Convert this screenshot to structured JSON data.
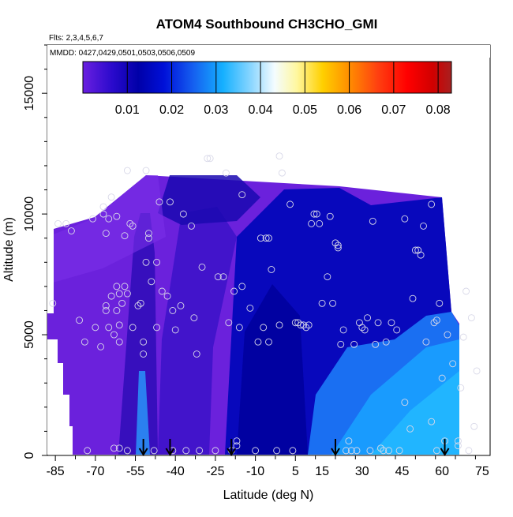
{
  "chart_data": {
    "type": "heatmap",
    "title": "ATOM4 Southbound CH3CHO_GMI",
    "subtitle_flights": "Flts: 2,3,4,5,6,7",
    "subtitle_dates": "MMDD: 0427,0429,0501,0503,0506,0509",
    "xlabel": "Latitude (deg N)",
    "ylabel": "Altitude (m)",
    "xlim": [
      -88,
      78
    ],
    "ylim": [
      0,
      17000
    ],
    "x_ticks": [
      -85,
      -70,
      -55,
      -40,
      -25,
      -10,
      5,
      15,
      30,
      45,
      60,
      75
    ],
    "x_tick_labels": [
      "-85",
      "-70",
      "-55",
      "-40",
      "-25",
      "-10",
      "5",
      "15",
      "30",
      "45",
      "60",
      "75"
    ],
    "y_ticks": [
      0,
      5000,
      10000,
      15000
    ],
    "y_tick_labels": [
      "0",
      "5000",
      "10000",
      "15000"
    ],
    "colorbar": {
      "range": [
        0,
        0.083
      ],
      "ticks": [
        0.01,
        0.02,
        0.03,
        0.04,
        0.05,
        0.06,
        0.07,
        0.08
      ],
      "tick_labels": [
        "0.01",
        "0.02",
        "0.03",
        "0.04",
        "0.05",
        "0.06",
        "0.07",
        "0.08"
      ]
    },
    "arrows_latitude": [
      -52,
      -42,
      -19,
      20,
      61
    ],
    "observation_points": [
      [
        -86,
        6300
      ],
      [
        -84,
        9600
      ],
      [
        -81,
        9600
      ],
      [
        -79,
        9300
      ],
      [
        -76,
        5600
      ],
      [
        -74,
        4700
      ],
      [
        -73,
        200
      ],
      [
        -71,
        9800
      ],
      [
        -70,
        5300
      ],
      [
        -68,
        4500
      ],
      [
        -67,
        10000
      ],
      [
        -67,
        10300
      ],
      [
        -66,
        9200
      ],
      [
        -66,
        6000
      ],
      [
        -66,
        6200
      ],
      [
        -65,
        9800
      ],
      [
        -65,
        5300
      ],
      [
        -64,
        10700
      ],
      [
        -64,
        6600
      ],
      [
        -63,
        5000
      ],
      [
        -63,
        300
      ],
      [
        -62,
        9900
      ],
      [
        -62,
        7000
      ],
      [
        -62,
        6000
      ],
      [
        -61,
        6700
      ],
      [
        -61,
        5400
      ],
      [
        -61,
        4700
      ],
      [
        -61,
        300
      ],
      [
        -60,
        6300
      ],
      [
        -59,
        7000
      ],
      [
        -59,
        9100
      ],
      [
        -58,
        11800
      ],
      [
        -58,
        6700
      ],
      [
        -58,
        200
      ],
      [
        -57,
        9600
      ],
      [
        -56,
        5300
      ],
      [
        -56,
        9500
      ],
      [
        -54,
        6200
      ],
      [
        -53,
        6300
      ],
      [
        -52,
        4700
      ],
      [
        -52,
        4200
      ],
      [
        -51,
        8000
      ],
      [
        -51,
        11800
      ],
      [
        -50,
        9000
      ],
      [
        -50,
        9200
      ],
      [
        -49,
        7200
      ],
      [
        -48,
        200
      ],
      [
        -47,
        8000
      ],
      [
        -47,
        5300
      ],
      [
        -46,
        10500
      ],
      [
        -45,
        6800
      ],
      [
        -43,
        6600
      ],
      [
        -42,
        10500
      ],
      [
        -41,
        6000
      ],
      [
        -41,
        200
      ],
      [
        -40,
        5200
      ],
      [
        -38,
        6200
      ],
      [
        -37,
        10000
      ],
      [
        -36,
        200
      ],
      [
        -34,
        9500
      ],
      [
        -33,
        5700
      ],
      [
        -32,
        4200
      ],
      [
        -31,
        200
      ],
      [
        -30,
        7800
      ],
      [
        -28,
        12300
      ],
      [
        -27,
        12300
      ],
      [
        -25,
        200
      ],
      [
        -24,
        7400
      ],
      [
        -22,
        7400
      ],
      [
        -21,
        11700
      ],
      [
        -20,
        5500
      ],
      [
        -19,
        200
      ],
      [
        -18,
        6800
      ],
      [
        -17,
        400
      ],
      [
        -17,
        600
      ],
      [
        -16,
        5300
      ],
      [
        -15,
        7000
      ],
      [
        -15,
        10800
      ],
      [
        -12,
        6100
      ],
      [
        -10,
        200
      ],
      [
        -9,
        4700
      ],
      [
        -8,
        9000
      ],
      [
        -7,
        5300
      ],
      [
        -6,
        9000
      ],
      [
        -5,
        4700
      ],
      [
        -5,
        9000
      ],
      [
        -4,
        7700
      ],
      [
        -2,
        200
      ],
      [
        -1,
        12400
      ],
      [
        -1,
        5400
      ],
      [
        0,
        11700
      ],
      [
        3,
        10400
      ],
      [
        4,
        200
      ],
      [
        5,
        5500
      ],
      [
        6,
        5500
      ],
      [
        7,
        5400
      ],
      [
        8,
        5400
      ],
      [
        9,
        5300
      ],
      [
        10,
        5400
      ],
      [
        11,
        9600
      ],
      [
        12,
        10000
      ],
      [
        13,
        10000
      ],
      [
        14,
        9600
      ],
      [
        15,
        6300
      ],
      [
        17,
        7400
      ],
      [
        18,
        9900
      ],
      [
        19,
        6300
      ],
      [
        20,
        8800
      ],
      [
        21,
        8700
      ],
      [
        21,
        8600
      ],
      [
        22,
        4600
      ],
      [
        23,
        5200
      ],
      [
        24,
        200
      ],
      [
        25,
        600
      ],
      [
        26,
        200
      ],
      [
        27,
        4600
      ],
      [
        28,
        200
      ],
      [
        29,
        5500
      ],
      [
        30,
        5300
      ],
      [
        31,
        5200
      ],
      [
        32,
        5700
      ],
      [
        33,
        200
      ],
      [
        34,
        9700
      ],
      [
        35,
        4600
      ],
      [
        36,
        5500
      ],
      [
        37,
        300
      ],
      [
        38,
        200
      ],
      [
        39,
        4700
      ],
      [
        40,
        200
      ],
      [
        41,
        5500
      ],
      [
        43,
        5200
      ],
      [
        44,
        200
      ],
      [
        46,
        2200
      ],
      [
        46,
        9800
      ],
      [
        48,
        1100
      ],
      [
        49,
        6500
      ],
      [
        50,
        8500
      ],
      [
        51,
        8500
      ],
      [
        52,
        8300
      ],
      [
        53,
        9500
      ],
      [
        54,
        4700
      ],
      [
        56,
        10400
      ],
      [
        56,
        1400
      ],
      [
        57,
        5500
      ],
      [
        58,
        200
      ],
      [
        58,
        5600
      ],
      [
        59,
        6300
      ],
      [
        60,
        3200
      ],
      [
        61,
        600
      ],
      [
        62,
        5000
      ],
      [
        64,
        3800
      ],
      [
        66,
        600
      ],
      [
        66,
        400
      ],
      [
        67,
        2800
      ],
      [
        68,
        4900
      ],
      [
        69,
        6800
      ],
      [
        70,
        200
      ],
      [
        71,
        5700
      ],
      [
        72,
        1200
      ],
      [
        73,
        3500
      ]
    ]
  }
}
